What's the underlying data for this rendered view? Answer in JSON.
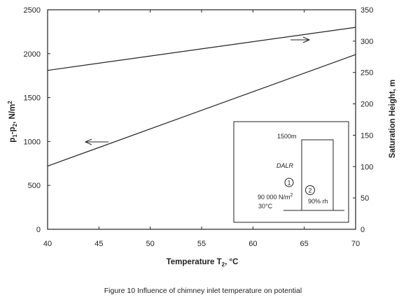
{
  "chart_data": {
    "type": "line",
    "x": [
      40,
      70
    ],
    "series": [
      {
        "axis": "left",
        "values": [
          1810,
          2300
        ]
      },
      {
        "axis": "left",
        "values": [
          720,
          1990
        ]
      }
    ],
    "xlim": [
      40,
      70
    ],
    "ylim_left": [
      0,
      2500
    ],
    "ylim_right": [
      0,
      350
    ],
    "xticks": [
      "40",
      "45",
      "50",
      "55",
      "60",
      "65",
      "70"
    ],
    "yticks_left": [
      "0",
      "500",
      "1000",
      "1500",
      "2000",
      "2500"
    ],
    "yticks_right": [
      "0",
      "50",
      "100",
      "150",
      "200",
      "250",
      "300",
      "350"
    ],
    "xlabel_main": "Temperature T",
    "xlabel_sub": "2",
    "xlabel_tail": ", °C",
    "ylabel_left_parts": [
      "p",
      "1",
      "-p",
      "2",
      ", N/m",
      "2"
    ],
    "ylabel_right": "Saturation Height, m",
    "grid": false,
    "annotations": {
      "arrow_upper": "right",
      "arrow_lower": "left"
    },
    "inset": {
      "height_label": "1500m",
      "lapse_label": "DALR",
      "marker_1": "1",
      "marker_2": "2",
      "pressure_label": "90 000 N/m",
      "pressure_sup": "2",
      "humidity_label": "90% rh",
      "temperature_label": "30°C"
    }
  },
  "caption": "Figure 10  Influence of chimney inlet temperature on potential"
}
